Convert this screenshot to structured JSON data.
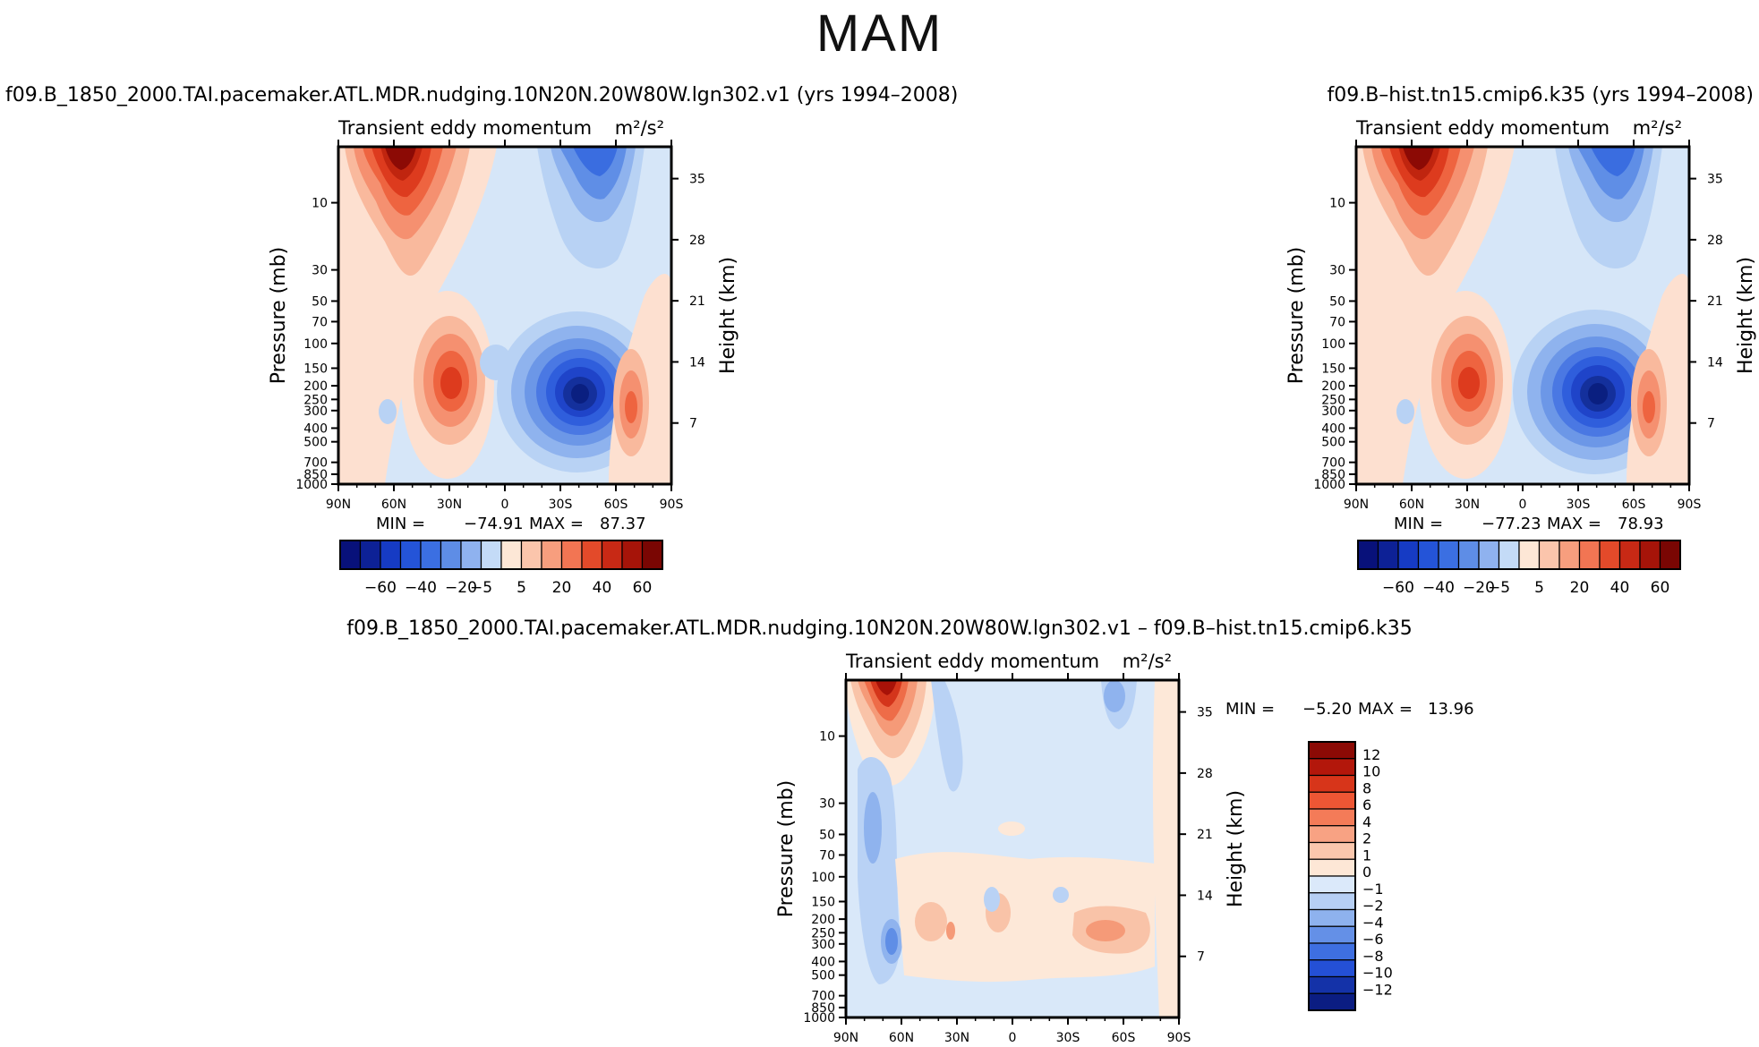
{
  "figure": {
    "season": "MAM",
    "experiment_a": "f09.B_1850_2000.TAI.pacemaker.ATL.MDR.nudging.10N20N.20W80W.lgn302.v1 (yrs 1994–2008)",
    "experiment_b": "f09.B–hist.tn15.cmip6.k35 (yrs 1994–2008)",
    "difference": "f09.B_1850_2000.TAI.pacemaker.ATL.MDR.nudging.10N20N.20W80W.lgn302.v1 – f09.B–hist.tn15.cmip6.k35"
  },
  "chart_data": [
    {
      "type": "contour",
      "id": "panel-a",
      "subtitle": "Transient eddy momentum",
      "units": "m²/s²",
      "ylabel": "Pressure (mb)",
      "y2label": "Height (km)",
      "x_ticks": [
        "90N",
        "60N",
        "30N",
        "0",
        "30S",
        "60S",
        "90S"
      ],
      "pressure_ticks": [
        10,
        30,
        50,
        70,
        100,
        150,
        200,
        250,
        300,
        400,
        500,
        700,
        850,
        1000
      ],
      "height_ticks": [
        35,
        28,
        21,
        14,
        7
      ],
      "ylim_mb": [
        4,
        1000
      ],
      "xlim_lat": [
        90,
        -90
      ],
      "min_label": "MIN =",
      "min": "−74.91",
      "max_label": "MAX =",
      "max": "87.37",
      "colorbar_labels": [
        "−60",
        "−40",
        "−20",
        "−5",
        "5",
        "20",
        "40",
        "60"
      ],
      "features": [
        {
          "lat": 60,
          "p": 4,
          "value": 87.4
        },
        {
          "lat": 30,
          "p": 230,
          "value": 40
        },
        {
          "lat": -40,
          "p": 250,
          "value": -74.9
        },
        {
          "lat": -55,
          "p": 4,
          "value": -45
        },
        {
          "lat": -68,
          "p": 300,
          "value": 30
        }
      ]
    },
    {
      "type": "contour",
      "id": "panel-b",
      "subtitle": "Transient eddy momentum",
      "units": "m²/s²",
      "ylabel": "Pressure (mb)",
      "y2label": "Height (km)",
      "x_ticks": [
        "90N",
        "60N",
        "30N",
        "0",
        "30S",
        "60S",
        "90S"
      ],
      "pressure_ticks": [
        10,
        30,
        50,
        70,
        100,
        150,
        200,
        250,
        300,
        400,
        500,
        700,
        850,
        1000
      ],
      "height_ticks": [
        35,
        28,
        21,
        14,
        7
      ],
      "ylim_mb": [
        4,
        1000
      ],
      "xlim_lat": [
        90,
        -90
      ],
      "min_label": "MIN =",
      "min": "−77.23",
      "max_label": "MAX =",
      "max": "78.93",
      "colorbar_labels": [
        "−60",
        "−40",
        "−20",
        "−5",
        "5",
        "20",
        "40",
        "60"
      ],
      "features": [
        {
          "lat": 60,
          "p": 4,
          "value": 78.9
        },
        {
          "lat": 30,
          "p": 230,
          "value": 40
        },
        {
          "lat": -40,
          "p": 250,
          "value": -77.2
        },
        {
          "lat": -55,
          "p": 4,
          "value": -45
        },
        {
          "lat": -68,
          "p": 300,
          "value": 30
        }
      ]
    },
    {
      "type": "contour",
      "id": "panel-diff",
      "subtitle": "Transient eddy momentum",
      "units": "m²/s²",
      "ylabel": "Pressure (mb)",
      "y2label": "Height (km)",
      "x_ticks": [
        "90N",
        "60N",
        "30N",
        "0",
        "30S",
        "60S",
        "90S"
      ],
      "pressure_ticks": [
        10,
        30,
        50,
        70,
        100,
        150,
        200,
        250,
        300,
        400,
        500,
        700,
        850,
        1000
      ],
      "height_ticks": [
        35,
        28,
        21,
        14,
        7
      ],
      "ylim_mb": [
        4,
        1000
      ],
      "xlim_lat": [
        90,
        -90
      ],
      "min_label": "MIN =",
      "min": "−5.20",
      "max_label": "MAX =",
      "max": "13.96",
      "colorbar_labels": [
        "12",
        "10",
        "8",
        "6",
        "4",
        "2",
        "1",
        "0",
        "−1",
        "−2",
        "−4",
        "−6",
        "−8",
        "−10",
        "−12"
      ],
      "features": [
        {
          "lat": 67,
          "p": 4,
          "value": 13.96
        },
        {
          "lat": 75,
          "p": 40,
          "value": -3
        },
        {
          "lat": 68,
          "p": 280,
          "value": -5.2
        },
        {
          "lat": -55,
          "p": 300,
          "value": 2
        },
        {
          "lat": 40,
          "p": 250,
          "value": 1
        }
      ]
    }
  ]
}
